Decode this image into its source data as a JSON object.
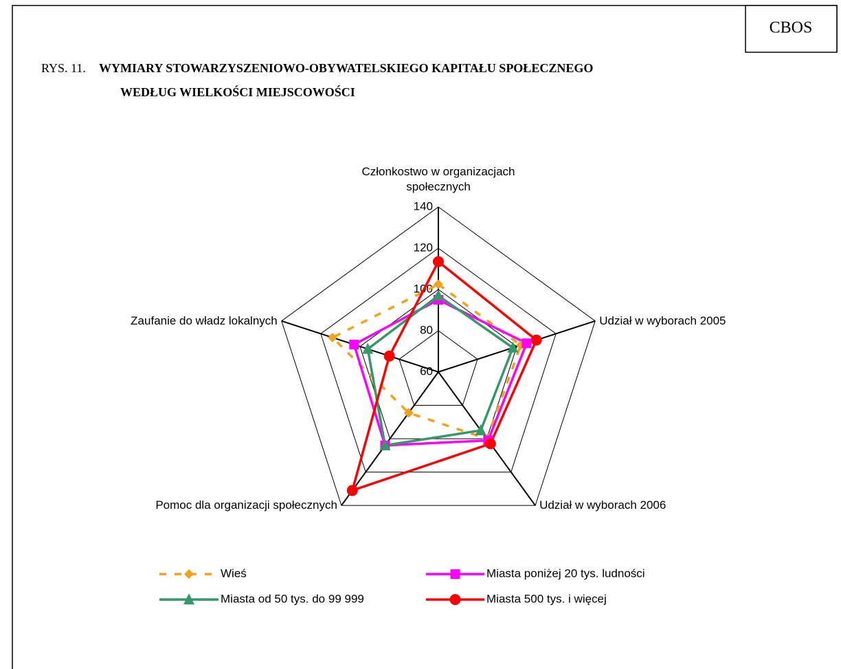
{
  "header": {
    "badge": "CBOS"
  },
  "chart_data": {
    "type": "radar",
    "title_prefix": "RYS. 11.",
    "title_lines": [
      "WYMIARY STOWARZYSZENIOWO-OBYWATELSKIEGO KAPITAŁU SPOŁECZNEGO",
      "WEDŁUG WIELKOŚCI MIEJSCOWOŚCI"
    ],
    "categories": [
      "Członkostwo w organizacjach społecznych",
      "Udział w wyborach 2005",
      "Udział w wyborach 2006",
      "Pomoc dla organizacji społecznych",
      "Zaufanie do władz lokalnych"
    ],
    "rlim": [
      60,
      140
    ],
    "rticks": [
      60,
      80,
      100,
      120,
      140
    ],
    "grid": true,
    "legend": "bottom",
    "series": [
      {
        "name": "Wieś",
        "color": "#f5a01a",
        "marker": "diamond",
        "dash": true,
        "values": [
          102.5,
          102,
          100,
          84.5,
          114
        ]
      },
      {
        "name": "Miasta poniżej 20 tys. ludności",
        "color": "#ff00ff",
        "marker": "square",
        "dash": false,
        "values": [
          95,
          105,
          101,
          104,
          103
        ]
      },
      {
        "name": "Miasta od 50 tys. do 99 999",
        "color": "#339966",
        "marker": "triangle",
        "dash": false,
        "values": [
          97,
          98,
          95,
          104,
          96
        ]
      },
      {
        "name": "Miasta 500 tys. i więcej",
        "color": "#ff0000",
        "marker": "circle",
        "dash": false,
        "values": [
          113.5,
          110,
          103,
          131,
          85
        ]
      }
    ]
  }
}
